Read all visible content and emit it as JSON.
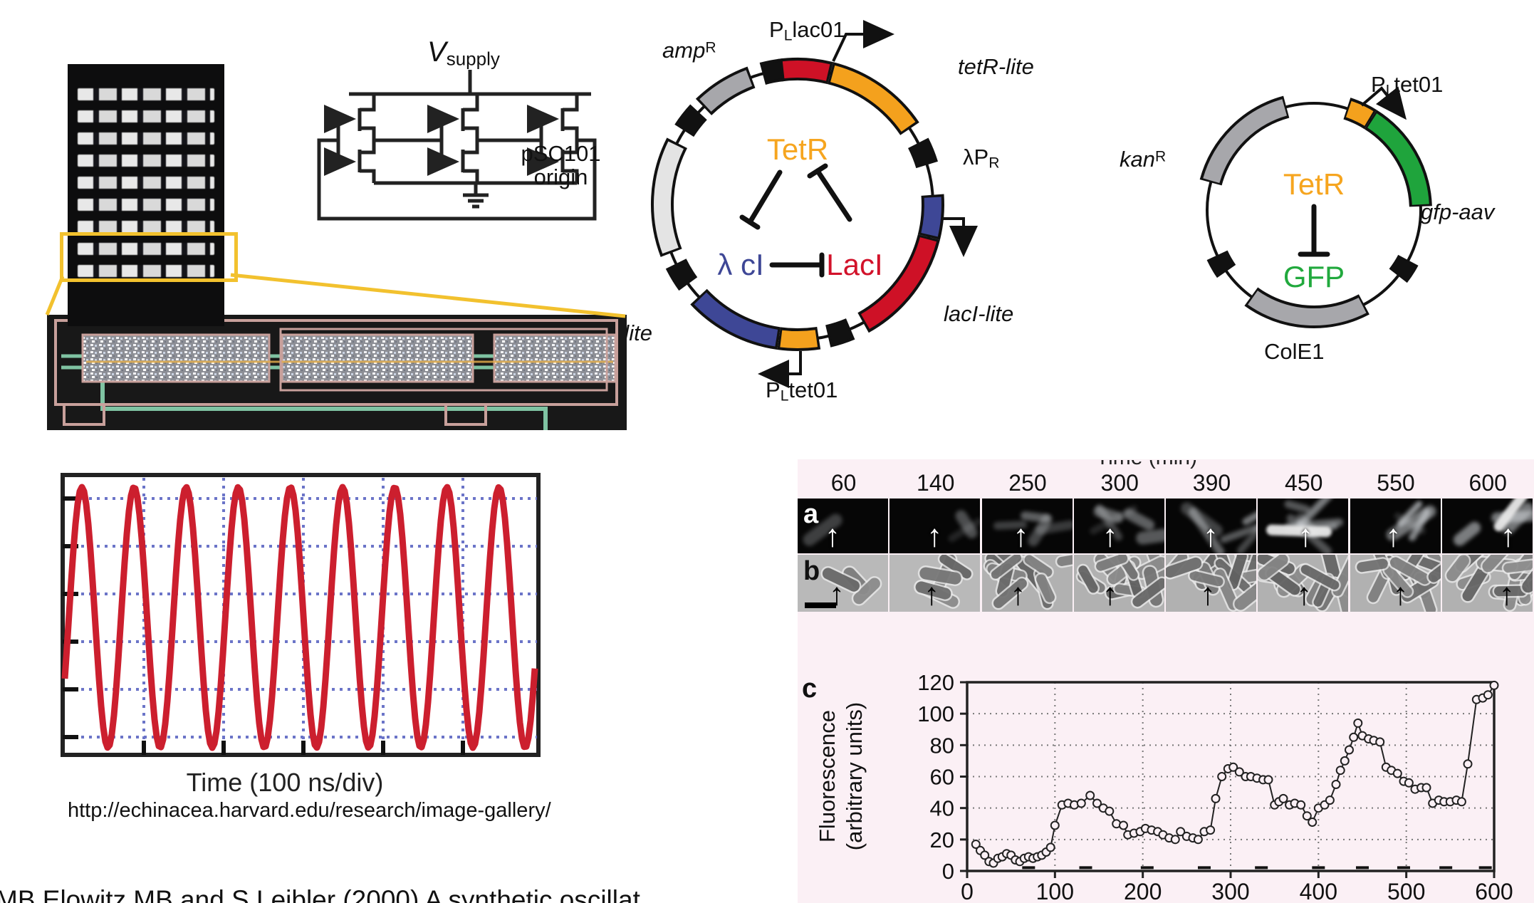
{
  "colors": {
    "accent_yellow": "#f2c12e",
    "scope_trace_red": "#cc1f2e",
    "scope_grid_blue": "#6b74c8",
    "plasmid_red": "#ce1126",
    "plasmid_orange": "#f4a11d",
    "plasmid_blue": "#3e4796",
    "plasmid_green": "#1fa43c",
    "plasmid_gray": "#a7a7ab",
    "plasmid_lightgray": "#e4e4e4",
    "panel_pink": "#fbf0f5",
    "tetr_text": "#f6a51f",
    "lambda_ci_text": "#3e4796",
    "laci_text": "#d2122a",
    "gfp_text": "#21a93d"
  },
  "left": {
    "supply_label": {
      "main": "V",
      "sub": "supply"
    },
    "scope_xlabel": "Time (100 ns/div)",
    "url": "http://echinacea.harvard.edu/research/image-gallery/",
    "citation_clipped": "MB Elowitz MB and S Leibler (2000) A synthetic oscillat"
  },
  "repressilator_plasmid": {
    "promoter_top": {
      "pre": "P",
      "sub": "L",
      "post": "lac01"
    },
    "gene_tetR": "tetR-lite",
    "ampR": {
      "pre": "amp",
      "sup": "R"
    },
    "origin_line1": "pSC101",
    "origin_line2": "origin",
    "lambda_pr": {
      "pre": "λP",
      "sub": "R"
    },
    "gene_lacI": "lacI-lite",
    "promoter_bottom": {
      "pre": "P",
      "sub": "L",
      "post": "tet01"
    },
    "gene_lambda_cI": "λ cI-lite",
    "network": {
      "tetR": "TetR",
      "lambda_cI": "λ cI",
      "lacI": "LacI"
    }
  },
  "reporter_plasmid": {
    "kanR": {
      "pre": "kan",
      "sup": "R"
    },
    "promoter": {
      "pre": "P",
      "sub": "L",
      "post": "tet01"
    },
    "gene_gfp": "gfp-aav",
    "origin": "ColE1",
    "network": {
      "tetR": "TetR",
      "gfp": "GFP"
    }
  },
  "micro_panel": {
    "time_header": "Time (min)",
    "times": [
      "60",
      "140",
      "250",
      "300",
      "390",
      "450",
      "550",
      "600"
    ],
    "row_a_label": "a",
    "row_b_label": "b",
    "chart_label": "c"
  },
  "chart_data": [
    {
      "id": "oscilloscope",
      "type": "line",
      "xlabel": "Time (100 ns/div)",
      "description": "Electronic ring-oscillator output: ~9 sinusoidal cycles across the screen",
      "cycles": 9,
      "x_grid_divisions": 5,
      "y_grid_divisions": 6,
      "line_color": "#cc1f2e",
      "grid_color": "#6b74c8"
    },
    {
      "id": "repressilator-fluorescence",
      "type": "line",
      "panel": "c",
      "xlabel": "Time (min)",
      "ylabel_lines": [
        "Fluorescence",
        "(arbitrary units)"
      ],
      "xlim": [
        0,
        600
      ],
      "ylim": [
        0,
        120
      ],
      "xticks": [
        0,
        100,
        200,
        300,
        400,
        500,
        600
      ],
      "yticks": [
        0,
        20,
        40,
        60,
        80,
        100,
        120
      ],
      "marker": "open-circle",
      "grid": "dotted",
      "x": [
        10,
        15,
        20,
        25,
        30,
        35,
        40,
        45,
        50,
        55,
        60,
        65,
        70,
        75,
        80,
        85,
        90,
        95,
        100,
        108,
        115,
        122,
        130,
        140,
        148,
        155,
        162,
        170,
        178,
        183,
        190,
        197,
        203,
        210,
        217,
        223,
        230,
        237,
        243,
        250,
        257,
        263,
        270,
        277,
        283,
        290,
        297,
        303,
        310,
        317,
        323,
        330,
        337,
        343,
        350,
        355,
        360,
        367,
        373,
        380,
        387,
        393,
        400,
        407,
        413,
        420,
        425,
        430,
        435,
        440,
        445,
        450,
        457,
        463,
        470,
        477,
        483,
        490,
        497,
        503,
        510,
        517,
        523,
        530,
        537,
        543,
        550,
        557,
        563,
        570,
        580,
        587,
        593,
        600
      ],
      "y": [
        17,
        13,
        10,
        6,
        5,
        8,
        9,
        11,
        10,
        7,
        6,
        8,
        9,
        8,
        9,
        10,
        12,
        15,
        29,
        42,
        43,
        42,
        43,
        48,
        43,
        40,
        38,
        30,
        29,
        23,
        24,
        25,
        27,
        26,
        25,
        23,
        21,
        20,
        25,
        22,
        21,
        20,
        25,
        26,
        46,
        60,
        65,
        66,
        63,
        60,
        60,
        59,
        58,
        58,
        42,
        44,
        46,
        42,
        43,
        42,
        35,
        31,
        40,
        42,
        45,
        55,
        64,
        70,
        77,
        85,
        94,
        86,
        84,
        83,
        82,
        66,
        64,
        62,
        57,
        56,
        52,
        53,
        53,
        43,
        45,
        44,
        44,
        45,
        44,
        68,
        109,
        110,
        112,
        118
      ],
      "division_marks_x": [
        70,
        135,
        205,
        270,
        335,
        400,
        450,
        497,
        545,
        590
      ]
    }
  ]
}
